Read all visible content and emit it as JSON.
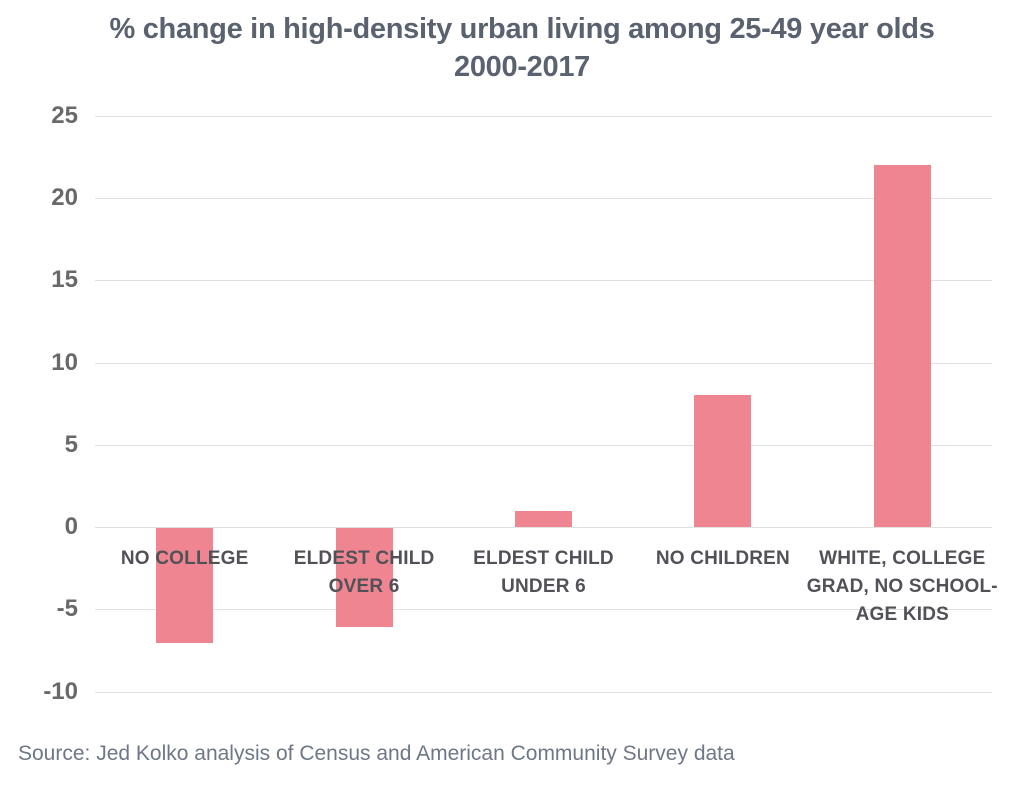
{
  "chart_data": {
    "type": "bar",
    "title": "% change in high-density urban living among 25-49 year olds",
    "subtitle": "2000-2017",
    "categories": [
      "NO COLLEGE",
      "ELDEST CHILD OVER 6",
      "ELDEST CHILD UNDER 6",
      "NO CHILDREN",
      "WHITE, COLLEGE GRAD, NO SCHOOL-AGE KIDS"
    ],
    "values": [
      -7,
      -6,
      1,
      8,
      22
    ],
    "yticks": [
      25,
      20,
      15,
      10,
      5,
      0,
      -5,
      -10
    ],
    "ylim": [
      -10,
      25
    ],
    "xlabel": "",
    "ylabel": "",
    "grid": true,
    "legend": false,
    "colors": {
      "bar": "#ef8591",
      "gridline": "#e1e1e1",
      "title": "#5a6270",
      "tick_label": "#696969",
      "category_label": "#515158",
      "source": "#6e7787"
    },
    "source": "Source: Jed Kolko analysis of Census and American Community Survey data"
  }
}
